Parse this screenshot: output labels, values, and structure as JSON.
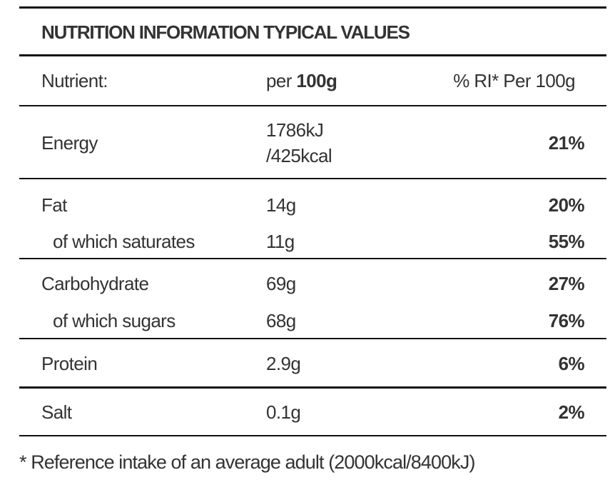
{
  "title": "NUTRITION INFORMATION TYPICAL VALUES",
  "header": {
    "nutrient": "Nutrient:",
    "per_label": "per",
    "per_amount": "100g",
    "ri": "% RI* Per 100g"
  },
  "rows": [
    {
      "nutrient": "Energy",
      "per_100g": [
        "1786kJ",
        "/425kcal"
      ],
      "ri": "21%"
    },
    {
      "nutrient": "Fat",
      "per_100g": [
        "14g"
      ],
      "ri": "20%"
    },
    {
      "nutrient": "of which saturates",
      "per_100g": [
        "11g"
      ],
      "ri": "55%"
    },
    {
      "nutrient": "Carbohydrate",
      "per_100g": [
        "69g"
      ],
      "ri": "27%"
    },
    {
      "nutrient": "of which sugars",
      "per_100g": [
        "68g"
      ],
      "ri": "76%"
    },
    {
      "nutrient": "Protein",
      "per_100g": [
        "2.9g"
      ],
      "ri": "6%"
    },
    {
      "nutrient": "Salt",
      "per_100g": [
        "0.1g"
      ],
      "ri": "2%"
    }
  ],
  "footnote": "* Reference intake of an average adult (2000kcal/8400kJ)"
}
